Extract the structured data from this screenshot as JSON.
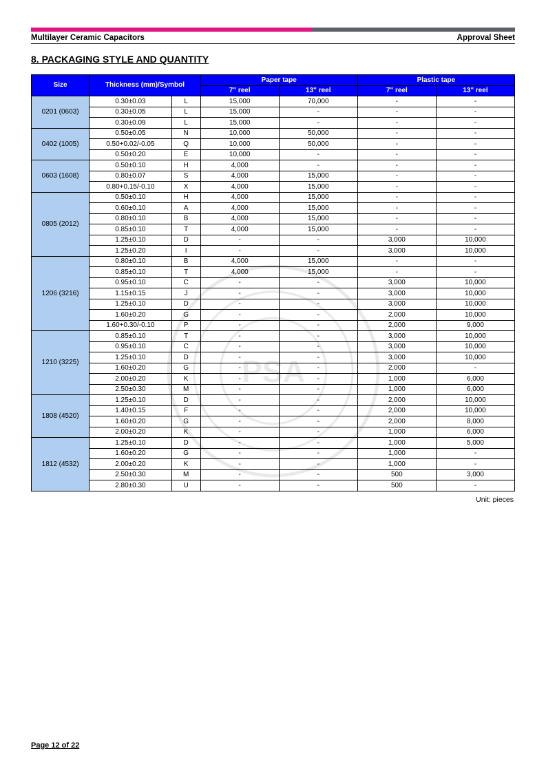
{
  "header": {
    "left": "Multilayer Ceramic Capacitors",
    "right": "Approval Sheet"
  },
  "section_title": "8. PACKAGING STYLE AND QUANTITY",
  "colors": {
    "header_bg": "#0000ff",
    "header_fg": "#ffffff",
    "size_bg": "#b0cef0",
    "bar_left": "#e01582",
    "bar_right": "#5c6268"
  },
  "table": {
    "headers": {
      "size": "Size",
      "thickness": "Thickness (mm)/Symbol",
      "paper": "Paper tape",
      "plastic": "Plastic tape",
      "reel7": "7\" reel",
      "reel13": "13\" reel"
    },
    "groups": [
      {
        "size": "0201 (0603)",
        "rows": [
          {
            "t": "0.30±0.03",
            "s": "L",
            "p7": "15,000",
            "p13": "70,000",
            "pl7": "-",
            "pl13": "-"
          },
          {
            "t": "0.30±0.05",
            "s": "L",
            "p7": "15,000",
            "p13": "-",
            "pl7": "-",
            "pl13": "-"
          },
          {
            "t": "0.30±0.09",
            "s": "L",
            "p7": "15,000",
            "p13": "-",
            "pl7": "-",
            "pl13": "-"
          }
        ]
      },
      {
        "size": "0402 (1005)",
        "rows": [
          {
            "t": "0.50±0.05",
            "s": "N",
            "p7": "10,000",
            "p13": "50,000",
            "pl7": "-",
            "pl13": "-"
          },
          {
            "t": "0.50+0.02/-0.05",
            "s": "Q",
            "p7": "10,000",
            "p13": "50,000",
            "pl7": "-",
            "pl13": "-"
          },
          {
            "t": "0.50±0.20",
            "s": "E",
            "p7": "10,000",
            "p13": "-",
            "pl7": "-",
            "pl13": "-"
          }
        ]
      },
      {
        "size": "0603 (1608)",
        "rows": [
          {
            "t": "0.50±0.10",
            "s": "H",
            "p7": "4,000",
            "p13": "-",
            "pl7": "-",
            "pl13": "-"
          },
          {
            "t": "0.80±0.07",
            "s": "S",
            "p7": "4,000",
            "p13": "15,000",
            "pl7": "-",
            "pl13": "-"
          },
          {
            "t": "0.80+0.15/-0.10",
            "s": "X",
            "p7": "4,000",
            "p13": "15,000",
            "pl7": "-",
            "pl13": "-"
          }
        ]
      },
      {
        "size": "0805 (2012)",
        "rows": [
          {
            "t": "0.50±0.10",
            "s": "H",
            "p7": "4,000",
            "p13": "15,000",
            "pl7": "-",
            "pl13": "-"
          },
          {
            "t": "0.60±0.10",
            "s": "A",
            "p7": "4,000",
            "p13": "15,000",
            "pl7": "-",
            "pl13": "-"
          },
          {
            "t": "0.80±0.10",
            "s": "B",
            "p7": "4,000",
            "p13": "15,000",
            "pl7": "-",
            "pl13": "-"
          },
          {
            "t": "0.85±0.10",
            "s": "T",
            "p7": "4,000",
            "p13": "15,000",
            "pl7": "-",
            "pl13": "-"
          },
          {
            "t": "1.25±0.10",
            "s": "D",
            "p7": "-",
            "p13": "-",
            "pl7": "3,000",
            "pl13": "10,000"
          },
          {
            "t": "1.25±0.20",
            "s": "I",
            "p7": "-",
            "p13": "-",
            "pl7": "3,000",
            "pl13": "10,000"
          }
        ]
      },
      {
        "size": "1206 (3216)",
        "rows": [
          {
            "t": "0.80±0.10",
            "s": "B",
            "p7": "4,000",
            "p13": "15,000",
            "pl7": "-",
            "pl13": "-"
          },
          {
            "t": "0.85±0.10",
            "s": "T",
            "p7": "4,000",
            "p13": "15,000",
            "pl7": "-",
            "pl13": "-"
          },
          {
            "t": "0.95±0.10",
            "s": "C",
            "p7": "-",
            "p13": "-",
            "pl7": "3,000",
            "pl13": "10,000"
          },
          {
            "t": "1.15±0.15",
            "s": "J",
            "p7": "-",
            "p13": "-",
            "pl7": "3,000",
            "pl13": "10,000"
          },
          {
            "t": "1.25±0.10",
            "s": "D",
            "p7": "-",
            "p13": "-",
            "pl7": "3,000",
            "pl13": "10,000"
          },
          {
            "t": "1.60±0.20",
            "s": "G",
            "p7": "-",
            "p13": "-",
            "pl7": "2,000",
            "pl13": "10,000"
          },
          {
            "t": "1.60+0.30/-0.10",
            "s": "P",
            "p7": "-",
            "p13": "-",
            "pl7": "2,000",
            "pl13": "9,000"
          }
        ]
      },
      {
        "size": "1210 (3225)",
        "rows": [
          {
            "t": "0.85±0.10",
            "s": "T",
            "p7": "-",
            "p13": "-",
            "pl7": "3,000",
            "pl13": "10,000"
          },
          {
            "t": "0.95±0.10",
            "s": "C",
            "p7": "-",
            "p13": "-",
            "pl7": "3,000",
            "pl13": "10,000"
          },
          {
            "t": "1.25±0.10",
            "s": "D",
            "p7": "-",
            "p13": "-",
            "pl7": "3,000",
            "pl13": "10,000"
          },
          {
            "t": "1.60±0.20",
            "s": "G",
            "p7": "-",
            "p13": "-",
            "pl7": "2,000",
            "pl13": "-"
          },
          {
            "t": "2.00±0.20",
            "s": "K",
            "p7": "-",
            "p13": "-",
            "pl7": "1,000",
            "pl13": "6,000"
          },
          {
            "t": "2.50±0.30",
            "s": "M",
            "p7": "-",
            "p13": "-",
            "pl7": "1,000",
            "pl13": "6,000"
          }
        ]
      },
      {
        "size": "1808 (4520)",
        "rows": [
          {
            "t": "1.25±0.10",
            "s": "D",
            "p7": "-",
            "p13": "-",
            "pl7": "2,000",
            "pl13": "10,000"
          },
          {
            "t": "1.40±0.15",
            "s": "F",
            "p7": "-",
            "p13": "-",
            "pl7": "2,000",
            "pl13": "10,000"
          },
          {
            "t": "1.60±0.20",
            "s": "G",
            "p7": "-",
            "p13": "-",
            "pl7": "2,000",
            "pl13": "8,000"
          },
          {
            "t": "2.00±0.20",
            "s": "K",
            "p7": "-",
            "p13": "-",
            "pl7": "1,000",
            "pl13": "6,000"
          }
        ]
      },
      {
        "size": "1812 (4532)",
        "rows": [
          {
            "t": "1.25±0.10",
            "s": "D",
            "p7": "-",
            "p13": "-",
            "pl7": "1,000",
            "pl13": "5,000"
          },
          {
            "t": "1.60±0.20",
            "s": "G",
            "p7": "-",
            "p13": "-",
            "pl7": "1,000",
            "pl13": "-"
          },
          {
            "t": "2.00±0.20",
            "s": "K",
            "p7": "-",
            "p13": "-",
            "pl7": "1,000",
            "pl13": "-"
          },
          {
            "t": "2.50±0.30",
            "s": "M",
            "p7": "-",
            "p13": "-",
            "pl7": "500",
            "pl13": "3,000"
          },
          {
            "t": "2.80±0.30",
            "s": "U",
            "p7": "-",
            "p13": "-",
            "pl7": "500",
            "pl13": "-"
          }
        ]
      }
    ]
  },
  "unit_label": "Unit: pieces",
  "footer": "Page 12 of 22",
  "watermark_center": "PSA"
}
